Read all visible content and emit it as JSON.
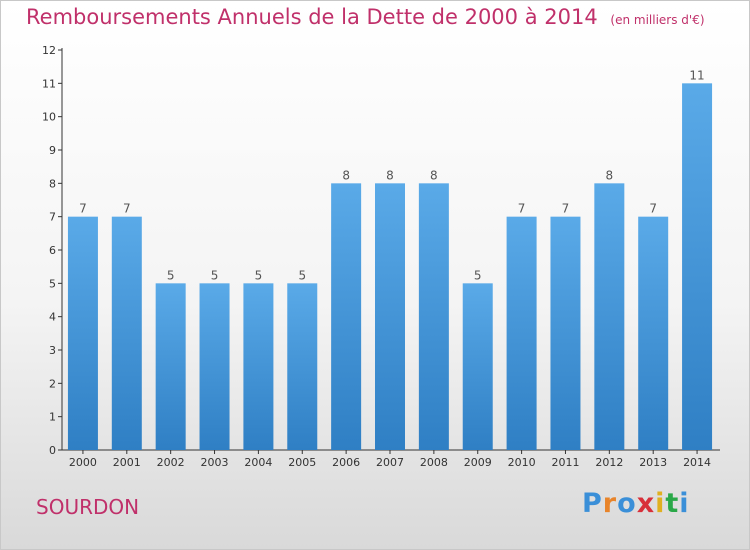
{
  "page": {
    "title": "Remboursements Annuels de la Dette de 2000 à 2014",
    "unit": "(en milliers d'€)",
    "town": "SOURDON",
    "logo": "Proxiti"
  },
  "colors": {
    "title": "#c0306a",
    "bar_top": "#5aaae8",
    "bar_bottom": "#2f7fc4",
    "logo": [
      "#3a8fd8",
      "#e8842a",
      "#3a8fd8",
      "#d8303a",
      "#e0b020",
      "#2aa848",
      "#3a8fd8"
    ]
  },
  "chart_data": {
    "type": "bar",
    "title": "Remboursements Annuels de la Dette de 2000 à 2014",
    "xlabel": "",
    "ylabel": "",
    "unit": "en milliers d'€",
    "ylim": [
      0,
      12
    ],
    "yticks": [
      0,
      1,
      2,
      3,
      4,
      5,
      6,
      7,
      8,
      9,
      10,
      11,
      12
    ],
    "grid": false,
    "categories": [
      "2000",
      "2001",
      "2002",
      "2003",
      "2004",
      "2005",
      "2006",
      "2007",
      "2008",
      "2009",
      "2010",
      "2011",
      "2012",
      "2013",
      "2014"
    ],
    "values": [
      7,
      7,
      5,
      5,
      5,
      5,
      8,
      8,
      8,
      5,
      7,
      7,
      8,
      7,
      11
    ]
  }
}
